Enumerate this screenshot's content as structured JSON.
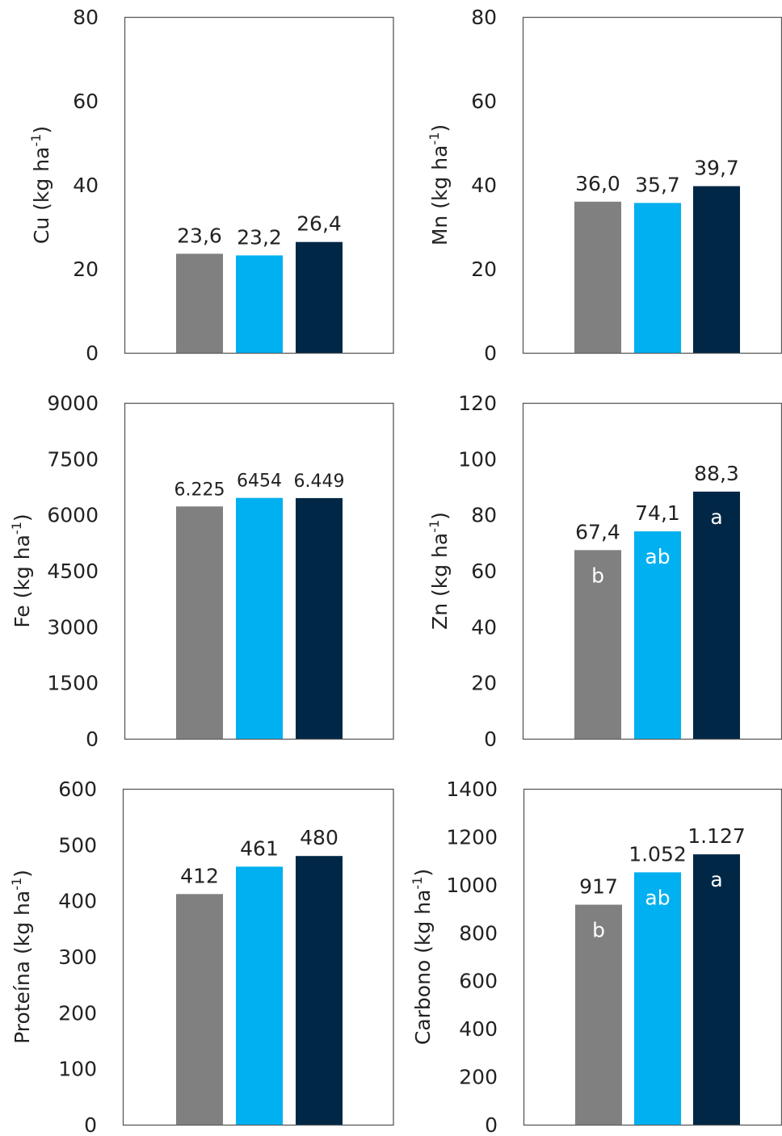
{
  "colors": {
    "series": [
      "#808080",
      "#00b0f0",
      "#002846"
    ],
    "frame": "#595959",
    "text": "#222222"
  },
  "chart_data": [
    {
      "type": "bar",
      "ylabel_main": "Cu (kg ha",
      "ylabel_sup": "-1",
      "ylabel_end": ")",
      "ylim": [
        0,
        80
      ],
      "ticks": [
        0,
        20,
        40,
        60,
        80
      ],
      "tick_labels": [
        "0",
        "20",
        "40",
        "60",
        "80"
      ],
      "values": [
        23.6,
        23.2,
        26.4
      ],
      "value_labels": [
        "23,6",
        "23,2",
        "26,4"
      ],
      "letters": [
        "",
        "",
        ""
      ]
    },
    {
      "type": "bar",
      "ylabel_main": "Mn (kg ha",
      "ylabel_sup": "-1",
      "ylabel_end": ")",
      "ylim": [
        0,
        80
      ],
      "ticks": [
        0,
        20,
        40,
        60,
        80
      ],
      "tick_labels": [
        "0",
        "20",
        "40",
        "60",
        "80"
      ],
      "values": [
        36.0,
        35.7,
        39.7
      ],
      "value_labels": [
        "36,0",
        "35,7",
        "39,7"
      ],
      "letters": [
        "",
        "",
        ""
      ]
    },
    {
      "type": "bar",
      "ylabel_main": "Fe (kg ha",
      "ylabel_sup": "-1",
      "ylabel_end": ")",
      "ylim": [
        0,
        9000
      ],
      "ticks": [
        0,
        1500,
        3000,
        4500,
        6000,
        7500,
        9000
      ],
      "tick_labels": [
        "0",
        "1500",
        "3000",
        "4500",
        "6000",
        "7500",
        "9000"
      ],
      "values": [
        6225,
        6454,
        6449
      ],
      "value_labels": [
        "6.225",
        "6454",
        "6.449"
      ],
      "letters": [
        "",
        "",
        ""
      ]
    },
    {
      "type": "bar",
      "ylabel_main": "Zn (kg ha",
      "ylabel_sup": "-1",
      "ylabel_end": ")",
      "ylim": [
        0,
        120
      ],
      "ticks": [
        0,
        20,
        40,
        60,
        80,
        100,
        120
      ],
      "tick_labels": [
        "0",
        "20",
        "40",
        "60",
        "80",
        "100",
        "120"
      ],
      "values": [
        67.4,
        74.1,
        88.3
      ],
      "value_labels": [
        "67,4",
        "74,1",
        "88,3"
      ],
      "letters": [
        "b",
        "ab",
        "a"
      ]
    },
    {
      "type": "bar",
      "ylabel_main": "Proteína (kg ha",
      "ylabel_sup": "-1",
      "ylabel_end": ")",
      "ylim": [
        0,
        600
      ],
      "ticks": [
        0,
        100,
        200,
        300,
        400,
        500,
        600
      ],
      "tick_labels": [
        "0",
        "100",
        "200",
        "300",
        "400",
        "500",
        "600"
      ],
      "values": [
        412,
        461,
        480
      ],
      "value_labels": [
        "412",
        "461",
        "480"
      ],
      "letters": [
        "",
        "",
        ""
      ]
    },
    {
      "type": "bar",
      "ylabel_main": "Carbono (kg ha",
      "ylabel_sup": "-1",
      "ylabel_end": ")",
      "ylim": [
        0,
        1400
      ],
      "ticks": [
        0,
        200,
        400,
        600,
        800,
        1000,
        1200,
        1400
      ],
      "tick_labels": [
        "0",
        "200",
        "400",
        "600",
        "800",
        "1000",
        "1200",
        "1400"
      ],
      "values": [
        917,
        1052,
        1127
      ],
      "value_labels": [
        "917",
        "1.052",
        "1.127"
      ],
      "letters": [
        "b",
        "ab",
        "a"
      ]
    }
  ]
}
